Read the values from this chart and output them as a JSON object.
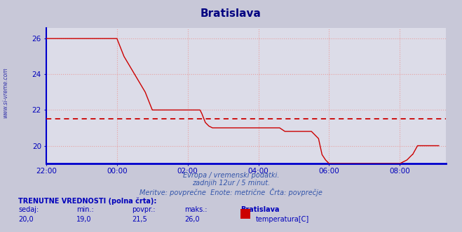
{
  "title": "Bratislava",
  "bg_color": "#c8c8d8",
  "plot_bg_color": "#dcdce8",
  "title_color": "#000080",
  "line_color": "#cc0000",
  "avg_line_color": "#cc0000",
  "axis_color": "#0000bb",
  "grid_color": "#e8a0a0",
  "text_color": "#0000aa",
  "watermark_color": "#3333aa",
  "xlabel_color": "#3355aa",
  "bottom_line_color": "#0000cc",
  "left_spine_color": "#0000cc",
  "ylim": [
    19.0,
    26.6
  ],
  "yticks": [
    20,
    22,
    24,
    26
  ],
  "xtick_labels": [
    "22:00",
    "00:00",
    "02:00",
    "04:00",
    "06:00",
    "08:00"
  ],
  "avg_value": 21.5,
  "footer_line1": "Evropa / vremenski podatki.",
  "footer_line2": "zadnjih 12ur / 5 minut.",
  "footer_line3": "Meritve: povprečne  Enote: metrične  Črta: povprečje",
  "label_current": "sedaj:",
  "label_min": "min.:",
  "label_avg": "povpr.:",
  "label_max": "maks.:",
  "val_current": "20,0",
  "val_min": "19,0",
  "val_avg": "21,5",
  "val_max": "26,0",
  "station_name": "Bratislava",
  "legend_label": "temperatura[C]",
  "header_label": "TRENUTNE VREDNOSTI (polna črta):",
  "watermark": "www.si-vreme.com",
  "time_data": [
    -2.0,
    -1.9,
    -1.8,
    -1.5,
    -1.2,
    -1.0,
    -0.8,
    -0.5,
    -0.3,
    -0.17,
    0.0,
    0.1,
    0.2,
    0.35,
    0.5,
    0.65,
    0.8,
    0.9,
    1.0,
    1.1,
    1.2,
    1.3,
    1.4,
    1.5,
    1.6,
    1.7,
    1.8,
    1.9,
    2.0,
    2.1,
    2.2,
    2.35,
    2.4,
    2.5,
    2.6,
    2.7,
    2.8,
    2.9,
    3.0,
    3.2,
    3.4,
    3.6,
    3.8,
    4.0,
    4.2,
    4.4,
    4.6,
    4.75,
    4.76,
    4.8,
    5.0,
    5.2,
    5.4,
    5.5,
    5.6,
    5.7,
    5.8,
    5.9,
    6.0,
    6.2,
    6.4,
    6.6,
    6.8,
    7.0,
    7.2,
    7.4,
    7.6,
    7.8,
    8.0,
    8.2,
    8.35,
    8.36,
    8.5,
    8.7,
    8.9,
    9.1
  ],
  "temp_data": [
    26.0,
    26.0,
    26.0,
    26.0,
    26.0,
    26.0,
    26.0,
    26.0,
    26.0,
    26.0,
    26.0,
    25.5,
    25.0,
    24.5,
    24.0,
    23.5,
    23.0,
    22.5,
    22.0,
    22.0,
    22.0,
    22.0,
    22.0,
    22.0,
    22.0,
    22.0,
    22.0,
    22.0,
    22.0,
    22.0,
    22.0,
    22.0,
    21.8,
    21.3,
    21.1,
    21.0,
    21.0,
    21.0,
    21.0,
    21.0,
    21.0,
    21.0,
    21.0,
    21.0,
    21.0,
    21.0,
    21.0,
    20.8,
    20.8,
    20.8,
    20.8,
    20.8,
    20.8,
    20.8,
    20.6,
    20.4,
    19.5,
    19.2,
    19.0,
    19.0,
    19.0,
    19.0,
    19.0,
    19.0,
    19.0,
    19.0,
    19.0,
    19.0,
    19.0,
    19.2,
    19.5,
    19.5,
    20.0,
    20.0,
    20.0,
    20.0
  ],
  "xmin": -2.0,
  "xmax": 9.3
}
